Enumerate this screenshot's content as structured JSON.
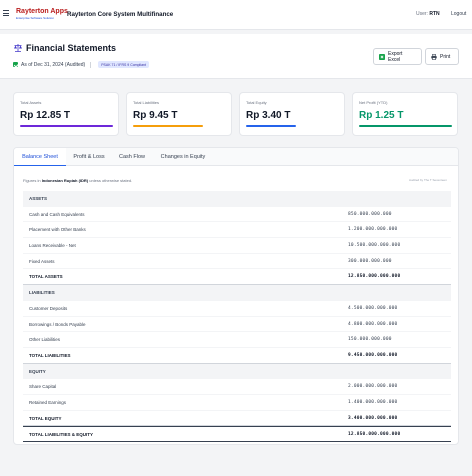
{
  "topbar": {
    "brand_name": "Rayterton Apps",
    "brand_tagline": "Enterprise Software Solution",
    "app_title": "Rayterton Core System Multifinance",
    "user_label": "User:",
    "user_name": "RTN",
    "logout_label": "Logout"
  },
  "header": {
    "title": "Financial Statements",
    "as_of": "As of Dec 31, 2024 (Audited)",
    "badge": "PSAK 71 / IFRS 9 Compliant",
    "export_label": "Export Excel",
    "print_label": "Print"
  },
  "stats": [
    {
      "label": "Total Assets",
      "value": "Rp 12.85 T",
      "color": "#6d28d9"
    },
    {
      "label": "Total Liabilities",
      "value": "Rp 9.45 T",
      "color": "#f59e0b"
    },
    {
      "label": "Total Equity",
      "value": "Rp 3.40 T",
      "color": "#2563eb"
    },
    {
      "label": "Net Profit (YTD)",
      "value": "Rp 1.25 T",
      "color": "#059669"
    }
  ],
  "tabs": [
    "Balance Sheet",
    "Profit & Loss",
    "Cash Flow",
    "Changes in Equity"
  ],
  "note": {
    "prefix": "Figures in",
    "currency": "Indonesian Rupiah (IDR)",
    "suffix": "unless otherwise stated.",
    "audited": "Audited by The T Seventeen"
  },
  "rows": [
    {
      "type": "section",
      "label": "ASSETS",
      "amount": ""
    },
    {
      "type": "item",
      "label": "Cash and Cash Equivalents",
      "amount": "850.000.000.000"
    },
    {
      "type": "item",
      "label": "Placement with Other Banks",
      "amount": "1.200.000.000.000"
    },
    {
      "type": "item",
      "label": "Loans Receivable - Net",
      "amount": "10.500.000.000.000"
    },
    {
      "type": "item",
      "label": "Fixed Assets",
      "amount": "300.000.000.000"
    },
    {
      "type": "total",
      "label": "TOTAL ASSETS",
      "amount": "12.850.000.000.000"
    },
    {
      "type": "section",
      "label": "LIABILITIES",
      "amount": ""
    },
    {
      "type": "item",
      "label": "Customer Deposits",
      "amount": "4.500.000.000.000"
    },
    {
      "type": "item",
      "label": "Borrowings / Bonds Payable",
      "amount": "4.800.000.000.000"
    },
    {
      "type": "item",
      "label": "Other Liabilities",
      "amount": "150.000.000.000"
    },
    {
      "type": "total",
      "label": "TOTAL LIABILITIES",
      "amount": "9.450.000.000.000"
    },
    {
      "type": "section",
      "label": "EQUITY",
      "amount": ""
    },
    {
      "type": "item",
      "label": "Share Capital",
      "amount": "2.000.000.000.000"
    },
    {
      "type": "item",
      "label": "Retained Earnings",
      "amount": "1.400.000.000.000"
    },
    {
      "type": "total",
      "label": "TOTAL EQUITY",
      "amount": "3.400.000.000.000"
    },
    {
      "type": "grand",
      "label": "TOTAL LIABILITIES & EQUITY",
      "amount": "12.850.000.000.000"
    }
  ]
}
